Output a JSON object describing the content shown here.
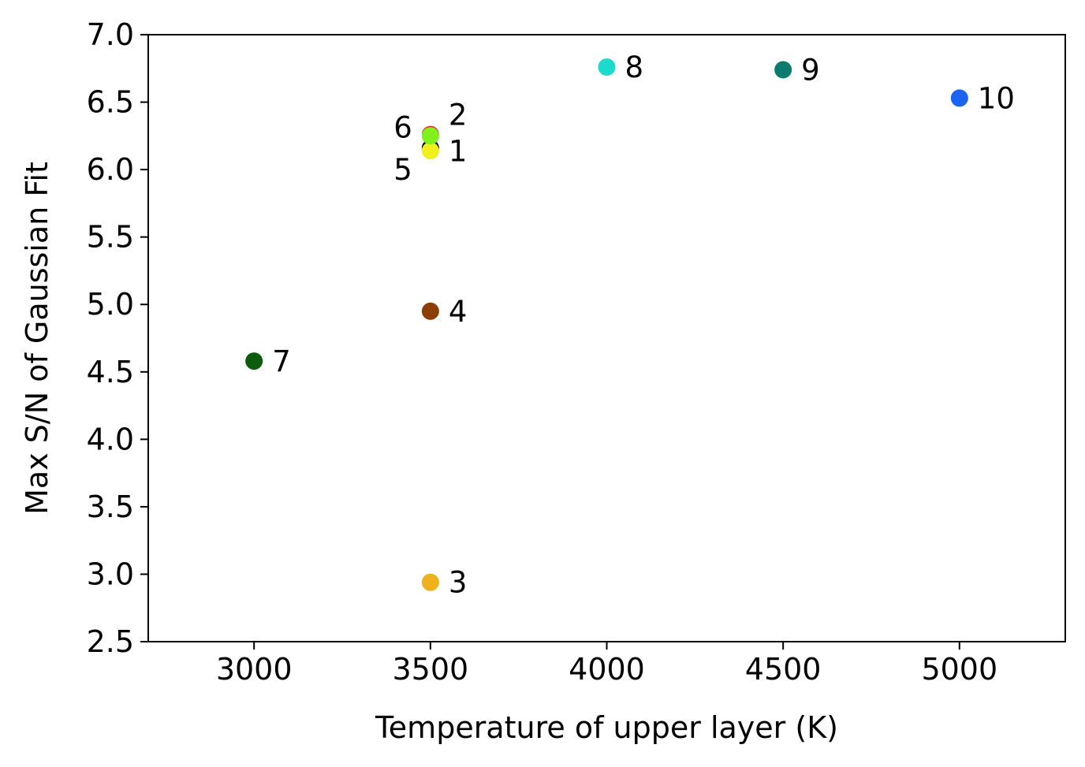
{
  "chart_data": {
    "type": "scatter",
    "title": "",
    "xlabel": "Temperature of upper layer (K)",
    "ylabel": "Max S/N of Gaussian Fit",
    "xlim": [
      2700,
      5300
    ],
    "ylim": [
      2.5,
      7.0
    ],
    "xticks": [
      3000,
      3500,
      4000,
      4500,
      5000
    ],
    "xtick_labels": [
      "3000",
      "3500",
      "4000",
      "4500",
      "5000"
    ],
    "yticks": [
      2.5,
      3.0,
      3.5,
      4.0,
      4.5,
      5.0,
      5.5,
      6.0,
      6.5,
      7.0
    ],
    "ytick_labels": [
      "2.5",
      "3.0",
      "3.5",
      "4.0",
      "4.5",
      "5.0",
      "5.5",
      "6.0",
      "6.5",
      "7.0"
    ],
    "grid": false,
    "legend": "none",
    "points": [
      {
        "label": "1",
        "x": 3500,
        "y": 6.16,
        "color": "#000000",
        "label_side": "right"
      },
      {
        "label": "2",
        "x": 3500,
        "y": 6.26,
        "color": "#e8312a",
        "label_side": "right"
      },
      {
        "label": "3",
        "x": 3500,
        "y": 2.94,
        "color": "#f0b21c",
        "label_side": "right"
      },
      {
        "label": "4",
        "x": 3500,
        "y": 4.95,
        "color": "#8b3f07",
        "label_side": "right"
      },
      {
        "label": "5",
        "x": 3500,
        "y": 6.14,
        "color": "#f2f01c",
        "label_side": "left"
      },
      {
        "label": "6",
        "x": 3500,
        "y": 6.25,
        "color": "#7ff21c",
        "label_side": "left"
      },
      {
        "label": "7",
        "x": 3000,
        "y": 4.58,
        "color": "#0d5c0d",
        "label_side": "right"
      },
      {
        "label": "8",
        "x": 4000,
        "y": 6.76,
        "color": "#1adbcc",
        "label_side": "right"
      },
      {
        "label": "9",
        "x": 4500,
        "y": 6.74,
        "color": "#0b7b70",
        "label_side": "right"
      },
      {
        "label": "10",
        "x": 5000,
        "y": 6.53,
        "color": "#1c63f2",
        "label_side": "right"
      }
    ]
  }
}
